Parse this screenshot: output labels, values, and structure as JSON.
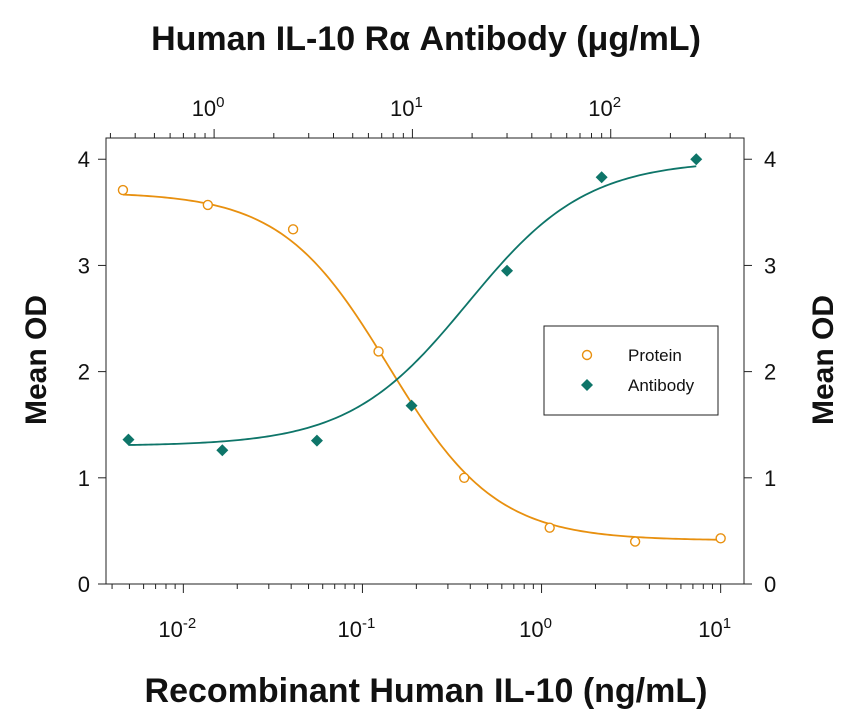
{
  "chart_data": {
    "type": "scatter",
    "title": "Human IL-10 Rα Antibody (μg/mL)",
    "xlabel": "Recombinant Human IL-10 (ng/mL)",
    "ylabel": "Mean OD",
    "ylabel_right": "Mean OD",
    "xscale": "log",
    "xlim": [
      0.0037,
      13.5
    ],
    "ylim": [
      0,
      4.2
    ],
    "yticks": [
      0,
      1,
      2,
      3,
      4
    ],
    "xticks_bottom": [
      {
        "value": 0.01,
        "base": "10",
        "exp": "-2"
      },
      {
        "value": 0.1,
        "base": "10",
        "exp": "-1"
      },
      {
        "value": 1,
        "base": "10",
        "exp": "0"
      },
      {
        "value": 10,
        "base": "10",
        "exp": "1"
      }
    ],
    "top_axis": {
      "label": "Human IL-10 Rα Antibody (μg/mL)",
      "scale": "log",
      "xlim": [
        0.285,
        470
      ],
      "ticks": [
        {
          "value": 1,
          "base": "10",
          "exp": "0"
        },
        {
          "value": 10,
          "base": "10",
          "exp": "1"
        },
        {
          "value": 100,
          "base": "10",
          "exp": "2"
        }
      ]
    },
    "grid": false,
    "legend_position": "right",
    "series": [
      {
        "name": "Protein",
        "axis": "bottom",
        "marker": "open-circle",
        "color": "#e8900f",
        "x": [
          0.0046,
          0.0137,
          0.041,
          0.123,
          0.37,
          1.11,
          3.33,
          10
        ],
        "y": [
          3.71,
          3.57,
          3.34,
          2.19,
          1.0,
          0.53,
          0.4,
          0.43
        ],
        "fit": {
          "top": 3.69,
          "bottom": 0.41,
          "ec50": 0.14,
          "hill": 1.45
        }
      },
      {
        "name": "Antibody",
        "axis": "top",
        "marker": "filled-diamond",
        "color": "#0e7569",
        "x": [
          0.37,
          1.1,
          3.3,
          9.9,
          30,
          90,
          270
        ],
        "y": [
          1.36,
          1.26,
          1.35,
          1.68,
          2.95,
          3.83,
          4.0
        ],
        "fit": {
          "top": 3.99,
          "bottom": 1.3,
          "ec50": 19,
          "hill": 1.45
        }
      }
    ]
  }
}
